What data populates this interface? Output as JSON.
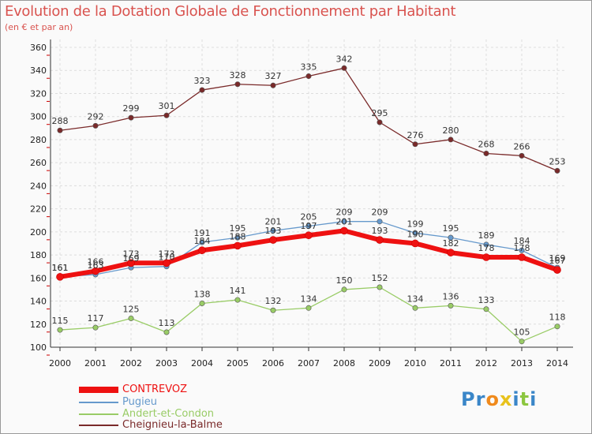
{
  "title": "Evolution de la Dotation Globale de Fonctionnement par Habitant",
  "subtitle": "(en € et par an)",
  "colors": {
    "title": "#d9534f",
    "grid": "#dddddd",
    "axis": "#333333",
    "tick_red": "#cc0000"
  },
  "chart_data": {
    "type": "line",
    "title": "Evolution de la Dotation Globale de Fonctionnement par Habitant",
    "subtitle": "(en € et par an)",
    "xlabel": "",
    "ylabel": "",
    "x": [
      "2000",
      "2001",
      "2002",
      "2003",
      "2004",
      "2005",
      "2006",
      "2007",
      "2008",
      "2009",
      "2010",
      "2011",
      "2012",
      "2013",
      "2014"
    ],
    "y_ticks": [
      "100",
      "120",
      "140",
      "160",
      "180",
      "200",
      "220",
      "240",
      "260",
      "280",
      "300",
      "320",
      "340",
      "360"
    ],
    "ylim": [
      100,
      360
    ],
    "grid": true,
    "legend_position": "bottom-left",
    "series": [
      {
        "name": "Cheignieu-la-Balme",
        "color": "#7a2a2a",
        "width": 1.3,
        "values": [
          288,
          292,
          299,
          301,
          323,
          328,
          327,
          335,
          342,
          295,
          276,
          280,
          268,
          266,
          253
        ]
      },
      {
        "name": "Andert-et-Condon",
        "color": "#99cc66",
        "width": 1.3,
        "values": [
          115,
          117,
          125,
          113,
          138,
          141,
          132,
          134,
          150,
          152,
          134,
          136,
          133,
          105,
          118
        ]
      },
      {
        "name": "Pugieu",
        "color": "#6699cc",
        "width": 1.3,
        "values": [
          161,
          163,
          169,
          170,
          191,
          195,
          201,
          205,
          209,
          209,
          199,
          195,
          189,
          184,
          169
        ]
      },
      {
        "name": "CONTREVOZ",
        "color": "#ee1111",
        "width": 6,
        "values": [
          161,
          166,
          173,
          173,
          184,
          188,
          193,
          197,
          201,
          193,
          190,
          182,
          178,
          178,
          167
        ]
      }
    ]
  },
  "legend": [
    {
      "label": "CONTREVOZ",
      "color": "#ee1111",
      "thickness": 8
    },
    {
      "label": "Pugieu",
      "color": "#6699cc",
      "thickness": 2
    },
    {
      "label": "Andert-et-Condon",
      "color": "#99cc66",
      "thickness": 2
    },
    {
      "label": "Cheignieu-la-Balme",
      "color": "#7a2a2a",
      "thickness": 2
    }
  ],
  "logo": {
    "text": "Proxiti",
    "letters": [
      {
        "ch": "P",
        "color": "#3a86c8"
      },
      {
        "ch": "r",
        "color": "#3a86c8"
      },
      {
        "ch": "o",
        "color": "#f08a1c"
      },
      {
        "ch": "x",
        "color": "#e8c21c"
      },
      {
        "ch": "i",
        "color": "#3a86c8"
      },
      {
        "ch": "t",
        "color": "#8cc63f"
      },
      {
        "ch": "i",
        "color": "#3a86c8"
      }
    ]
  }
}
